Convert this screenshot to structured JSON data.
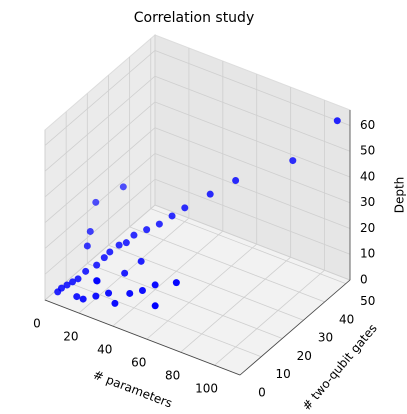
{
  "chart_data": {
    "type": "scatter3d",
    "title": "Correlation study",
    "xlabel": "# parameters",
    "ylabel": "# two-qubit gates",
    "zlabel": "Depth",
    "color": "#0000ff",
    "x": [
      5,
      6,
      8,
      10,
      12,
      14,
      18,
      20,
      22,
      25,
      28,
      30,
      35,
      40,
      45,
      50,
      60,
      70,
      90,
      110,
      15,
      20,
      25,
      30,
      35,
      40,
      45,
      50,
      55,
      60,
      10,
      8,
      5,
      15,
      18,
      22,
      32,
      38
    ],
    "y": [
      2,
      3,
      4,
      5,
      6,
      8,
      10,
      12,
      13,
      15,
      16,
      18,
      20,
      22,
      24,
      26,
      30,
      34,
      45,
      50,
      3,
      2,
      4,
      6,
      5,
      8,
      10,
      12,
      8,
      14,
      12,
      15,
      20,
      25,
      10,
      7,
      12,
      15
    ],
    "z": [
      3,
      4,
      5,
      6,
      7,
      9,
      11,
      13,
      15,
      17,
      18,
      20,
      22,
      24,
      27,
      30,
      35,
      40,
      45,
      62,
      3,
      4,
      5,
      6,
      4,
      7,
      8,
      10,
      6,
      12,
      15,
      18,
      25,
      30,
      5,
      8,
      10,
      14
    ],
    "xlim": [
      0,
      115
    ],
    "ylim": [
      0,
      52
    ],
    "zlim": [
      0,
      66
    ],
    "xticks": [
      0,
      20,
      40,
      60,
      80,
      100
    ],
    "yticks": [
      0,
      10,
      20,
      30,
      40,
      50
    ],
    "zticks": [
      0,
      10,
      20,
      30,
      40,
      50,
      60
    ],
    "grid": true
  }
}
